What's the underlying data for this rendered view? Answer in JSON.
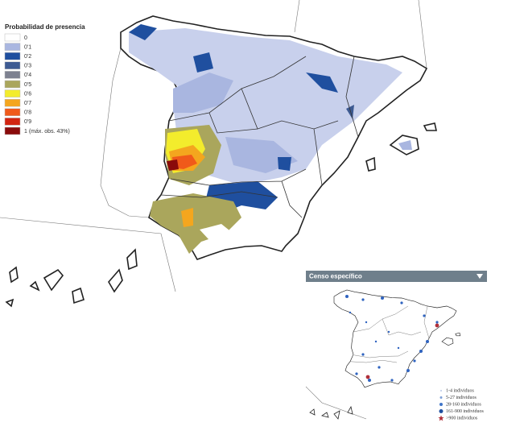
{
  "legend": {
    "title": "Probabilidad de presencia",
    "items": [
      {
        "label": "0",
        "color": "#ffffff"
      },
      {
        "label": "0'1",
        "color": "#a9b6e0"
      },
      {
        "label": "0'2",
        "color": "#1f4f9f"
      },
      {
        "label": "0'3",
        "color": "#3d5a92"
      },
      {
        "label": "0'4",
        "color": "#7d8190"
      },
      {
        "label": "0'5",
        "color": "#aaa65c"
      },
      {
        "label": "0'6",
        "color": "#f3ec2c"
      },
      {
        "label": "0'7",
        "color": "#f4a61e"
      },
      {
        "label": "0'8",
        "color": "#f05a1a"
      },
      {
        "label": "0'9",
        "color": "#d22410"
      },
      {
        "label": "1 (máx. obs. 43%)",
        "color": "#8a0b0b"
      }
    ]
  },
  "census": {
    "title": "Censo específico",
    "items": [
      {
        "label": "1-4 individuos",
        "color": "#b9c8e6"
      },
      {
        "label": "5-27 individuos",
        "color": "#7f9fd6"
      },
      {
        "label": "28-160 individuos",
        "color": "#3f74c8"
      },
      {
        "label": "161-900 individuos",
        "color": "#1f4fa0"
      },
      {
        "label": ">900 individuos",
        "color": "#b0303a"
      }
    ]
  }
}
